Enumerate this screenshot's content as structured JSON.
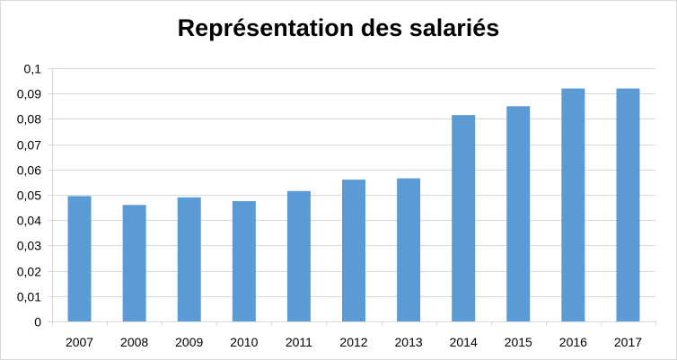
{
  "chart_data": {
    "type": "bar",
    "title": "Représentation des salariés",
    "categories": [
      "2007",
      "2008",
      "2009",
      "2010",
      "2011",
      "2012",
      "2013",
      "2014",
      "2015",
      "2016",
      "2017"
    ],
    "values": [
      0.0495,
      0.046,
      0.049,
      0.0475,
      0.0515,
      0.056,
      0.0565,
      0.0815,
      0.085,
      0.092,
      0.092
    ],
    "ylim": [
      0,
      0.1
    ],
    "yticks": [
      "0",
      "0,01",
      "0,02",
      "0,03",
      "0,04",
      "0,05",
      "0,06",
      "0,07",
      "0,08",
      "0,09",
      "0,1"
    ],
    "grid": true,
    "legend": "none",
    "xlabel": "",
    "ylabel": "",
    "bar_color": "#5b9bd5",
    "grid_color": "#d9d9d9"
  }
}
